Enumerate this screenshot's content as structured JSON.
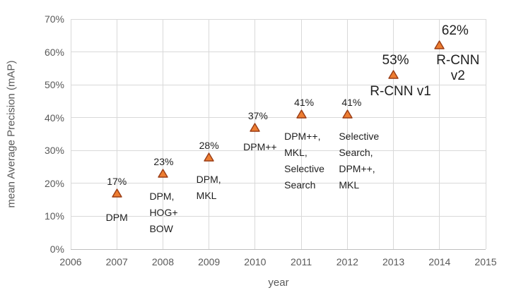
{
  "chart_data": {
    "type": "scatter",
    "title": "",
    "xlabel": "year",
    "ylabel": "mean Average Precision (mAP)",
    "xlim": [
      2006,
      2015
    ],
    "ylim_percent": [
      0,
      70
    ],
    "grid": true,
    "legend": "none",
    "marker": {
      "shape": "triangle-up",
      "fill": "#ED7D31",
      "stroke": "#993C15"
    },
    "colors": {
      "background": "#FFFFFF",
      "gridline": "#D9D9D9",
      "axis_line": "#BFBFBF",
      "tick_label": "#595959",
      "axis_title": "#595959",
      "data_label": "#1F1F1F"
    },
    "x_ticks": [
      {
        "value": 2006,
        "label": "2006"
      },
      {
        "value": 2007,
        "label": "2007"
      },
      {
        "value": 2008,
        "label": "2008"
      },
      {
        "value": 2009,
        "label": "2009"
      },
      {
        "value": 2010,
        "label": "2010"
      },
      {
        "value": 2011,
        "label": "2011"
      },
      {
        "value": 2012,
        "label": "2012"
      },
      {
        "value": 2013,
        "label": "2013"
      },
      {
        "value": 2014,
        "label": "2014"
      },
      {
        "value": 2015,
        "label": "2015"
      }
    ],
    "y_ticks": [
      {
        "value": 0,
        "label": "0%"
      },
      {
        "value": 10,
        "label": "10%"
      },
      {
        "value": 20,
        "label": "20%"
      },
      {
        "value": 30,
        "label": "30%"
      },
      {
        "value": 40,
        "label": "40%"
      },
      {
        "value": 50,
        "label": "50%"
      },
      {
        "value": 60,
        "label": "60%"
      },
      {
        "value": 70,
        "label": "70%"
      }
    ],
    "points": [
      {
        "year": 2007,
        "map_percent": 17,
        "value_label": "17%",
        "method": "DPM",
        "name_lines": [
          "DPM"
        ],
        "name_align": "center",
        "dx_value": 0,
        "dx_name": 0,
        "dy_name": 23,
        "big": false
      },
      {
        "year": 2008,
        "map_percent": 23,
        "value_label": "23%",
        "method": "DPM, HOG+ BOW",
        "name_lines": [
          "DPM,",
          "HOG+",
          "BOW"
        ],
        "name_align": "left",
        "dx_value": 1,
        "dx_name": -19,
        "dy_name": 21,
        "big": false
      },
      {
        "year": 2009,
        "map_percent": 28,
        "value_label": "28%",
        "method": "DPM, MKL",
        "name_lines": [
          "DPM,",
          "MKL"
        ],
        "name_align": "left",
        "dx_value": 0,
        "dx_name": -18,
        "dy_name": 20,
        "big": false
      },
      {
        "year": 2010,
        "map_percent": 37,
        "value_label": "37%",
        "method": "DPM++",
        "name_lines": [
          "DPM++"
        ],
        "name_align": "center",
        "dx_value": 4,
        "dx_name": 7,
        "dy_name": 16,
        "big": false
      },
      {
        "year": 2011,
        "map_percent": 41,
        "value_label": "41%",
        "method": "DPM++, MKL, Selective Search",
        "name_lines": [
          "DPM++,",
          "MKL,",
          "Selective",
          "Search"
        ],
        "name_align": "left",
        "dx_value": 4,
        "dx_name": -24,
        "dy_name": 20,
        "big": false
      },
      {
        "year": 2012,
        "map_percent": 41,
        "value_label": "41%",
        "method": "Selective Search, DPM++, MKL",
        "name_lines": [
          "Selective",
          "Search,",
          "DPM++,",
          "MKL"
        ],
        "name_align": "left",
        "dx_value": 6,
        "dx_name": -12,
        "dy_name": 20,
        "big": false
      },
      {
        "year": 2013,
        "map_percent": 53,
        "value_label": "53%",
        "method": "R-CNN v1",
        "name_lines": [
          "R-CNN v1"
        ],
        "name_align": "center",
        "dx_value": 3,
        "dx_name": 10,
        "dy_name": 13,
        "big": true
      },
      {
        "year": 2014,
        "map_percent": 62,
        "value_label": "62%",
        "method": "R-CNN v2",
        "name_lines": [
          "R-CNN v2"
        ],
        "name_align": "center",
        "dx_value": 22,
        "dx_name": 26,
        "dy_name": 11,
        "big": true
      }
    ]
  }
}
